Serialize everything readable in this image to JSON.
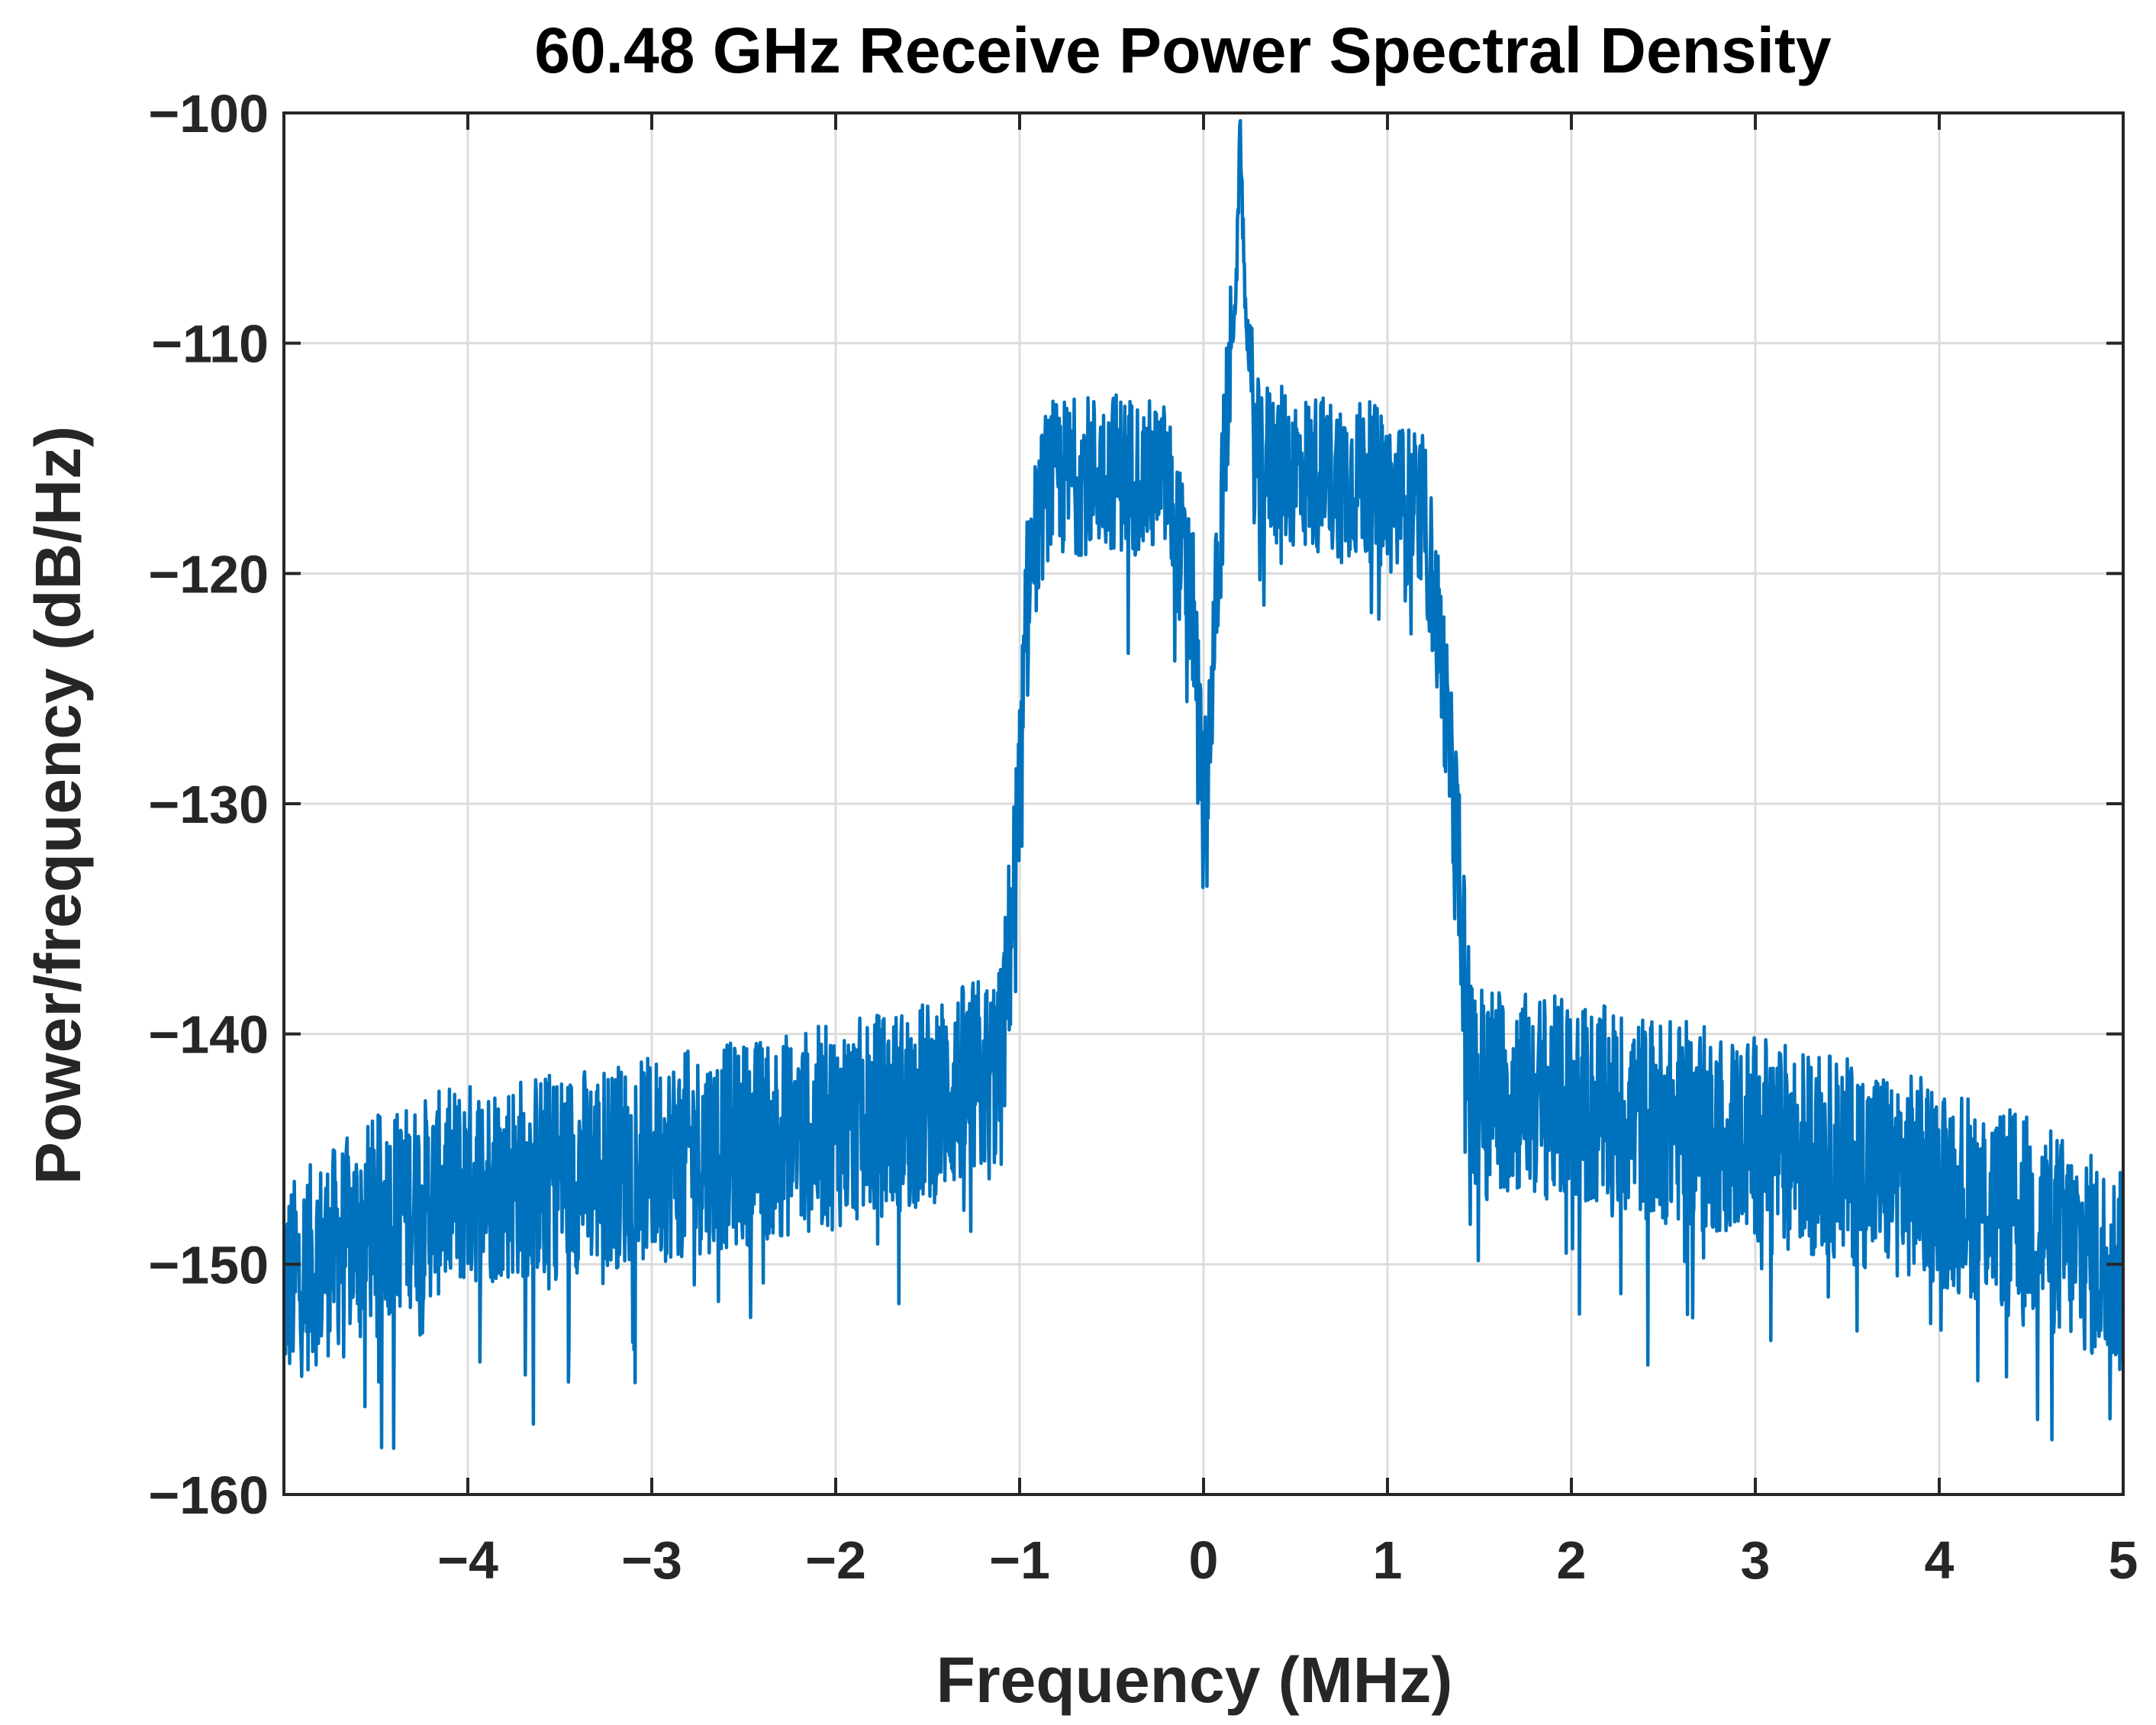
{
  "chart_data": {
    "type": "line",
    "title": "60.48 GHz Receive Power Spectral Density",
    "xlabel": "Frequency (MHz)",
    "ylabel": "Power/frequency (dB/Hz)",
    "xlim": [
      -5,
      5
    ],
    "ylim": [
      -160,
      -100
    ],
    "grid": true,
    "line_color": "#0072bd",
    "x_ticks": [
      -4,
      -3,
      -2,
      -1,
      0,
      1,
      2,
      3,
      4,
      5
    ],
    "x_tick_labels": [
      "−4",
      "−3",
      "−2",
      "−1",
      "0",
      "1",
      "2",
      "3",
      "4",
      "5"
    ],
    "y_ticks": [
      -160,
      -150,
      -140,
      -130,
      -120,
      -110,
      -100
    ],
    "y_tick_labels": [
      "−160",
      "−150",
      "−140",
      "−130",
      "−120",
      "−110",
      "−100"
    ],
    "series": [
      {
        "name": "PSD",
        "description": "noise-like spectrum; envelope mean values in dB/Hz at given frequencies (MHz)",
        "envelope": [
          {
            "x": -5.0,
            "y": -151.0
          },
          {
            "x": -4.5,
            "y": -148.0
          },
          {
            "x": -4.0,
            "y": -146.5
          },
          {
            "x": -3.0,
            "y": -145.5
          },
          {
            "x": -2.0,
            "y": -144.0
          },
          {
            "x": -1.5,
            "y": -143.0
          },
          {
            "x": -1.1,
            "y": -141.5
          },
          {
            "x": -1.0,
            "y": -130.0
          },
          {
            "x": -0.95,
            "y": -120.0
          },
          {
            "x": -0.85,
            "y": -116.0
          },
          {
            "x": -0.5,
            "y": -115.5
          },
          {
            "x": -0.2,
            "y": -116.0
          },
          {
            "x": -0.05,
            "y": -122.0
          },
          {
            "x": 0.0,
            "y": -131.0
          },
          {
            "x": 0.05,
            "y": -124.0
          },
          {
            "x": 0.12,
            "y": -114.0
          },
          {
            "x": 0.18,
            "y": -107.0
          },
          {
            "x": 0.2,
            "y": -100.5
          },
          {
            "x": 0.22,
            "y": -107.0
          },
          {
            "x": 0.28,
            "y": -115.0
          },
          {
            "x": 0.5,
            "y": -115.5
          },
          {
            "x": 0.9,
            "y": -116.0
          },
          {
            "x": 1.2,
            "y": -117.5
          },
          {
            "x": 1.3,
            "y": -124.0
          },
          {
            "x": 1.4,
            "y": -134.0
          },
          {
            "x": 1.45,
            "y": -142.0
          },
          {
            "x": 2.0,
            "y": -143.0
          },
          {
            "x": 3.0,
            "y": -144.5
          },
          {
            "x": 4.0,
            "y": -146.5
          },
          {
            "x": 4.5,
            "y": -148.0
          },
          {
            "x": 5.0,
            "y": -150.5
          }
        ],
        "noise_spread_db": {
          "out_of_band": 4.5,
          "in_band": 3.5
        }
      }
    ]
  }
}
